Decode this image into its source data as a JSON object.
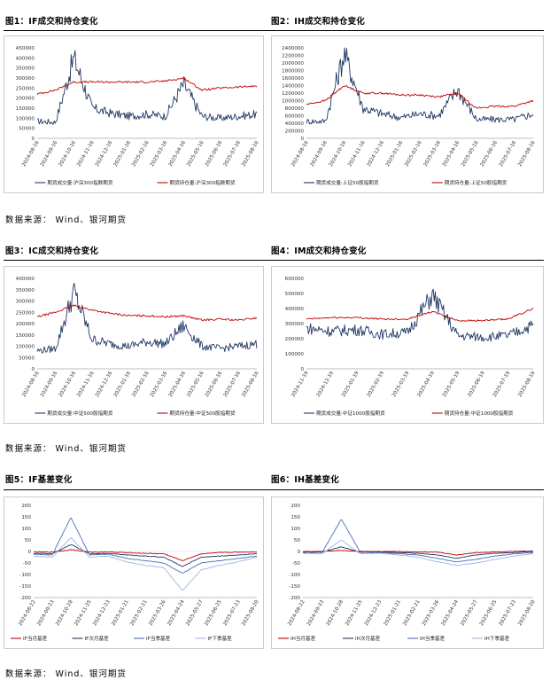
{
  "sources": {
    "s1": "数据来源：  Wind、银河期货",
    "s2": "数据来源：  Wind、银河期货",
    "s3": "数据来源：  Wind、银河期货"
  },
  "colors": {
    "navy": "#1f3864",
    "red": "#c00000",
    "blue_mid": "#4a6fb5",
    "blue_light": "#9fb6e0"
  },
  "chart_data": [
    {
      "id": "f1",
      "caption": "图1：IF成交和持仓变化",
      "type": "line",
      "x": [
        "2024-08-16",
        "2024-09-16",
        "2024-10-16",
        "2024-11-16",
        "2024-12-16",
        "2025-01-16",
        "2025-02-16",
        "2025-03-16",
        "2025-04-16",
        "2025-05-16",
        "2025-06-16",
        "2025-07-16",
        "2025-08-16"
      ],
      "ylim": [
        0,
        450000
      ],
      "yticks": [
        "0",
        "50000",
        "100000",
        "150000",
        "200000",
        "250000",
        "300000",
        "350000",
        "400000",
        "450000"
      ],
      "series": [
        {
          "name": "期货成交量:沪深300指数期货",
          "color": "#1f3864",
          "values": [
            85000,
            80000,
            400000,
            150000,
            125000,
            110000,
            120000,
            110000,
            270000,
            110000,
            100000,
            110000,
            120000
          ]
        },
        {
          "name": "期货持仓量:沪深300指数期货",
          "color": "#c00000",
          "values": [
            220000,
            240000,
            280000,
            280000,
            280000,
            280000,
            280000,
            285000,
            300000,
            240000,
            250000,
            255000,
            260000
          ]
        }
      ]
    },
    {
      "id": "f2",
      "caption": "图2：IH成交和持仓变化",
      "type": "line",
      "x": [
        "2024-08-16",
        "2024-09-16",
        "2024-10-16",
        "2024-11-16",
        "2024-12-16",
        "2025-01-16",
        "2025-02-16",
        "2025-03-16",
        "2025-04-16",
        "2025-05-16",
        "2025-06-16",
        "2025-07-16",
        "2025-08-16"
      ],
      "ylim": [
        0,
        2400000
      ],
      "yticks": [
        "0",
        "200000",
        "400000",
        "600000",
        "800000",
        "1000000",
        "1200000",
        "1400000",
        "1600000",
        "1800000",
        "2000000",
        "2200000",
        "2400000"
      ],
      "series": [
        {
          "name": "期货成交量:上证50股指期货",
          "color": "#1f3864",
          "values": [
            450000,
            450000,
            2250000,
            800000,
            650000,
            550000,
            650000,
            600000,
            1300000,
            500000,
            500000,
            500000,
            650000
          ]
        },
        {
          "name": "期货持仓量:上证50股指期货",
          "color": "#c00000",
          "values": [
            900000,
            1000000,
            1400000,
            1200000,
            1200000,
            1150000,
            1150000,
            1100000,
            1200000,
            800000,
            850000,
            850000,
            1000000
          ]
        }
      ]
    },
    {
      "id": "f3",
      "caption": "图3：IC成交和持仓变化",
      "type": "line",
      "x": [
        "2024-08-16",
        "2024-09-16",
        "2024-10-16",
        "2024-11-16",
        "2024-12-16",
        "2025-01-16",
        "2025-02-16",
        "2025-03-16",
        "2025-04-16",
        "2025-05-16",
        "2025-06-16",
        "2025-07-16",
        "2025-08-16"
      ],
      "ylim": [
        0,
        400000
      ],
      "yticks": [
        "0",
        "50000",
        "100000",
        "150000",
        "200000",
        "250000",
        "300000",
        "350000",
        "400000"
      ],
      "series": [
        {
          "name": "期货成交量:中证500股指期货",
          "color": "#1f3864",
          "values": [
            80000,
            90000,
            340000,
            130000,
            110000,
            100000,
            120000,
            110000,
            190000,
            100000,
            90000,
            100000,
            110000
          ]
        },
        {
          "name": "期货持仓量:中证500股指期货",
          "color": "#c00000",
          "values": [
            230000,
            250000,
            280000,
            260000,
            245000,
            235000,
            235000,
            230000,
            235000,
            215000,
            220000,
            215000,
            225000
          ]
        }
      ]
    },
    {
      "id": "f4",
      "caption": "图4：IM成交和持仓变化",
      "type": "line",
      "x": [
        "2024-11-19",
        "2024-12-19",
        "2025-01-19",
        "2025-02-19",
        "2025-03-19",
        "2025-04-19",
        "2025-05-19",
        "2025-06-19",
        "2025-07-19",
        "2025-08-19"
      ],
      "ylim": [
        0,
        600000
      ],
      "yticks": [
        "0",
        "100000",
        "200000",
        "300000",
        "400000",
        "500000",
        "600000"
      ],
      "series": [
        {
          "name": "期货成交量:中证1000股指期货",
          "color": "#1f3864",
          "values": [
            270000,
            250000,
            260000,
            230000,
            240000,
            490000,
            220000,
            210000,
            220000,
            290000
          ]
        },
        {
          "name": "期货持仓量:中证1000股指期货",
          "color": "#c00000",
          "values": [
            330000,
            340000,
            340000,
            330000,
            330000,
            380000,
            320000,
            320000,
            330000,
            400000
          ]
        }
      ]
    },
    {
      "id": "f5",
      "caption": "图5：IF基差变化",
      "type": "line",
      "x": [
        "2024-08-22",
        "2024-09-22",
        "2024-10-22",
        "2024-11-22",
        "2024-12-22",
        "2025-01-22",
        "2025-02-22",
        "2025-03-22",
        "2025-04-22",
        "2025-05-22",
        "2025-06-22",
        "2025-07-22",
        "2025-08-22"
      ],
      "xticks": [
        "2024-08-22",
        "2024-09-23",
        "2024-10-28",
        "2024-11-25",
        "2024-12-23",
        "2025-01-21",
        "2025-02-21",
        "2025-03-26",
        "2025-04-24",
        "2025-05-27",
        "2025-06-25",
        "2025-07-23",
        "2025-08-20"
      ],
      "ylim": [
        -200,
        200
      ],
      "yticks": [
        "-200",
        "-150",
        "-100",
        "-50",
        "0",
        "50",
        "100",
        "150",
        "200"
      ],
      "series": [
        {
          "name": "IF当月基差",
          "color": "#c00000",
          "values": [
            -2,
            -3,
            8,
            -3,
            -2,
            -5,
            -8,
            -10,
            -40,
            -10,
            -5,
            -3,
            -2
          ]
        },
        {
          "name": "IF次月基差",
          "color": "#1f3864",
          "values": [
            -8,
            -10,
            30,
            -10,
            -8,
            -15,
            -20,
            -25,
            -65,
            -25,
            -20,
            -15,
            -10
          ]
        },
        {
          "name": "IF当季基差",
          "color": "#4a6fb5",
          "values": [
            -12,
            -15,
            148,
            -15,
            -12,
            -30,
            -40,
            -50,
            -95,
            -50,
            -40,
            -30,
            -20
          ]
        },
        {
          "name": "IF下季基差",
          "color": "#9fb6e0",
          "values": [
            -20,
            -25,
            60,
            -25,
            -20,
            -45,
            -60,
            -70,
            -170,
            -80,
            -60,
            -45,
            -25
          ]
        }
      ]
    },
    {
      "id": "f6",
      "caption": "图6：IH基差变化",
      "type": "line",
      "x": [
        "2024-08-22",
        "2024-09-22",
        "2024-10-22",
        "2024-11-22",
        "2024-12-22",
        "2025-01-22",
        "2025-02-22",
        "2025-03-22",
        "2025-04-22",
        "2025-05-22",
        "2025-06-22",
        "2025-07-22",
        "2025-08-22"
      ],
      "xticks": [
        "2024-08-22",
        "2024-09-23",
        "2024-10-28",
        "2024-11-25",
        "2024-12-23",
        "2025-01-21",
        "2025-02-21",
        "2025-03-26",
        "2025-04-24",
        "2025-05-27",
        "2025-06-25",
        "2025-07-23",
        "2025-08-20"
      ],
      "ylim": [
        -200,
        200
      ],
      "yticks": [
        "-200",
        "-150",
        "-100",
        "-50",
        "0",
        "50",
        "100",
        "150",
        "200"
      ],
      "series": [
        {
          "name": "IH当月基差",
          "color": "#c00000",
          "values": [
            0,
            0,
            5,
            0,
            0,
            0,
            -2,
            -3,
            -15,
            -5,
            -2,
            0,
            2
          ]
        },
        {
          "name": "IH次月基差",
          "color": "#1f3864",
          "values": [
            -2,
            -3,
            20,
            -3,
            -2,
            -5,
            -8,
            -15,
            -30,
            -15,
            -8,
            -5,
            0
          ]
        },
        {
          "name": "IH当季基差",
          "color": "#4a6fb5",
          "values": [
            -5,
            -5,
            140,
            -5,
            -5,
            -10,
            -15,
            -30,
            -45,
            -35,
            -20,
            -10,
            -5
          ]
        },
        {
          "name": "IH下季基差",
          "color": "#9fb6e0",
          "values": [
            -8,
            -10,
            50,
            -10,
            -8,
            -15,
            -25,
            -45,
            -60,
            -50,
            -35,
            -20,
            -10
          ]
        }
      ]
    }
  ]
}
